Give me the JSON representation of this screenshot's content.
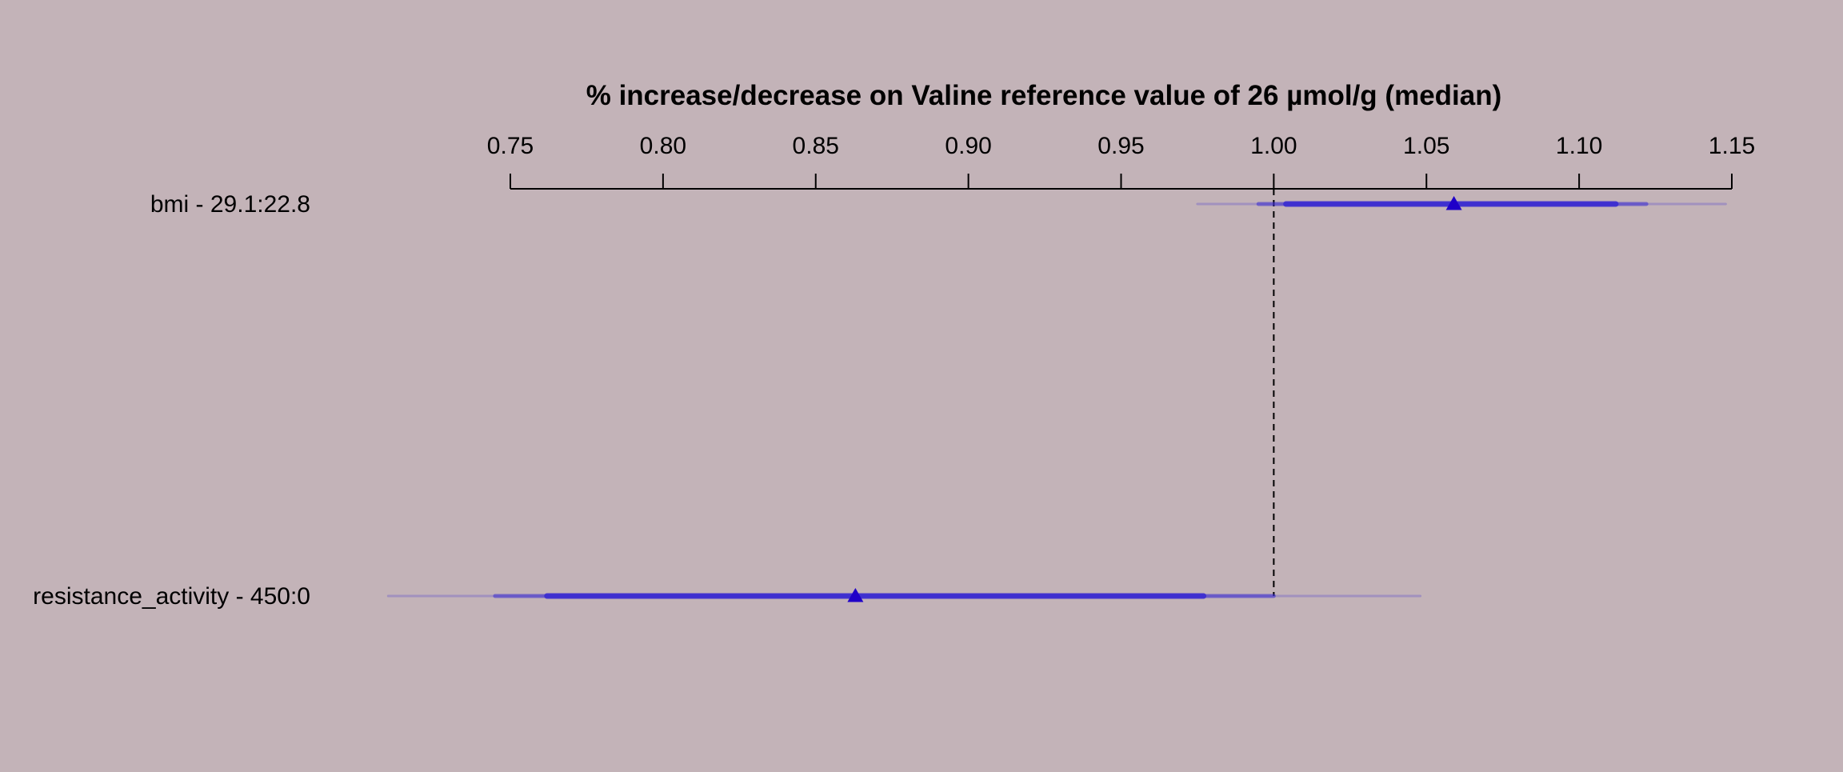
{
  "chart_data": {
    "type": "forest",
    "title": "% increase/decrease on Valine reference value of 26 µmol/g (median)",
    "xlim": [
      0.75,
      1.15
    ],
    "ticks": [
      "0.75",
      "0.80",
      "0.85",
      "0.90",
      "0.95",
      "1.00",
      "1.05",
      "1.10",
      "1.15"
    ],
    "reference_value": 1.0,
    "grid": false,
    "colors": {
      "background": "#c3b3b8",
      "point": "#1f00c8",
      "interval": "#3a2bd0",
      "reference_line": "#000000"
    },
    "rows": [
      {
        "label": "bmi - 29.1:22.8",
        "estimate": 1.059,
        "ci_50": [
          1.004,
          1.112
        ],
        "ci_90": [
          0.995,
          1.122
        ],
        "ci_99": [
          0.975,
          1.148
        ]
      },
      {
        "label": "resistance_activity - 450:0",
        "estimate": 0.863,
        "ci_50": [
          0.762,
          0.977
        ],
        "ci_90": [
          0.745,
          1.0
        ],
        "ci_99": [
          0.71,
          1.048
        ]
      }
    ]
  }
}
